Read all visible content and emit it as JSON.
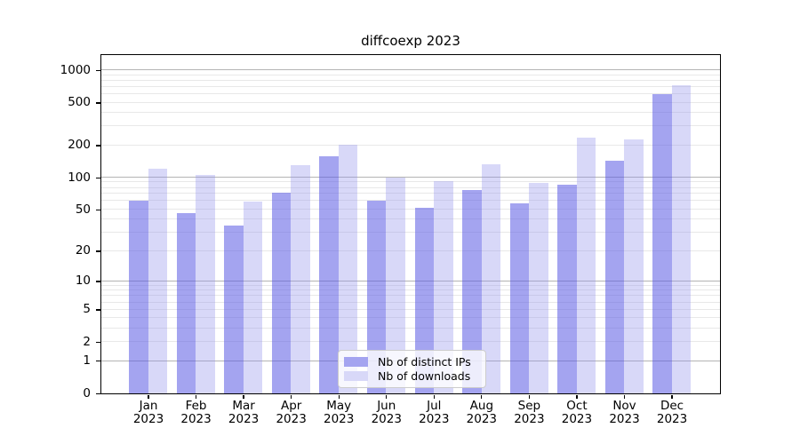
{
  "chart_data": {
    "type": "bar",
    "title": "diffcoexp 2023",
    "categories": [
      "Jan",
      "Feb",
      "Mar",
      "Apr",
      "May",
      "Jun",
      "Jul",
      "Aug",
      "Sep",
      "Oct",
      "Nov",
      "Dec"
    ],
    "category_year": "2023",
    "series": [
      {
        "name": "Nb of distinct IPs",
        "color": "#a4a4f0",
        "values": [
          60,
          46,
          35,
          72,
          158,
          60,
          52,
          77,
          57,
          86,
          143,
          600
        ]
      },
      {
        "name": "Nb of downloads",
        "color": "#d8d8f8",
        "values": [
          122,
          106,
          59,
          131,
          204,
          100,
          93,
          132,
          89,
          238,
          226,
          725
        ]
      }
    ],
    "xlabel": "",
    "ylabel": "",
    "y_scale": "log10(value+1)",
    "y_ticks": [
      0,
      1,
      2,
      5,
      10,
      20,
      50,
      100,
      200,
      500,
      1000
    ],
    "y_tick_labels": [
      "0",
      "1",
      "2",
      "5",
      "10",
      "20",
      "50",
      "100",
      "200",
      "500",
      "1000"
    ],
    "ylim": [
      0,
      1384
    ],
    "grid": "horizontal, log decades major + 2-9 minors",
    "legend_position": "lower center"
  },
  "colors": {
    "bar_distinct_ips": "#a4a4f0",
    "bar_downloads": "#d8d8f8",
    "grid_major": "#b4b4b4",
    "grid_minor": "#e8e8e8",
    "axis": "#000000",
    "legend_border": "#cccccc"
  }
}
